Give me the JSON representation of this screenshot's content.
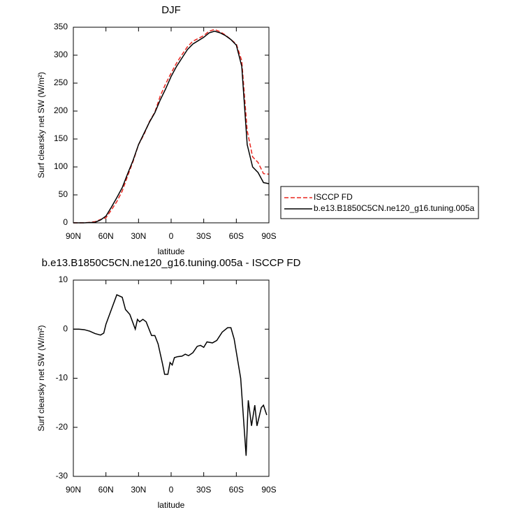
{
  "chart_data": [
    {
      "type": "line",
      "title": "DJF",
      "x_label": "latitude",
      "y_label": "Surf clearsky net SW (W/m²)",
      "xlim": [
        90,
        -90
      ],
      "xticks": [
        {
          "value": 90,
          "label": "90N"
        },
        {
          "value": 60,
          "label": "60N"
        },
        {
          "value": 30,
          "label": "30N"
        },
        0,
        {
          "value": -30,
          "label": "30S"
        },
        {
          "value": -60,
          "label": "60S"
        },
        {
          "value": -90,
          "label": "90S"
        }
      ],
      "ylim": [
        0,
        350
      ],
      "yticks": [
        0,
        50,
        100,
        150,
        200,
        250,
        300,
        350
      ],
      "legend": "outside right",
      "x": [
        90,
        85,
        80,
        75,
        70,
        65,
        60,
        55,
        50,
        45,
        40,
        35,
        30,
        25,
        20,
        15,
        10,
        5,
        0,
        -5,
        -10,
        -15,
        -20,
        -25,
        -30,
        -35,
        -40,
        -45,
        -50,
        -55,
        -60,
        -65,
        -70,
        -75,
        -80,
        -85,
        -90
      ],
      "series": [
        {
          "name": "ISCCP FD",
          "color": "#e8261f",
          "dashed": true,
          "values": [
            0,
            0,
            0,
            0.8,
            2,
            6,
            9,
            23,
            38,
            57,
            84,
            110,
            140,
            158,
            181,
            198,
            227,
            249,
            268,
            286,
            301,
            315,
            325,
            330,
            335,
            343,
            346,
            342,
            336,
            328,
            320,
            290,
            165,
            118,
            108,
            88,
            87
          ]
        },
        {
          "name": "b.e13.B1850C5CN.ne120_g16.tuning.005a",
          "color": "#000000",
          "dashed": false,
          "values": [
            0,
            0,
            0,
            0.5,
            1,
            5,
            12,
            28,
            45,
            63,
            88,
            112,
            140,
            160,
            180,
            197,
            220,
            240,
            262,
            280,
            295,
            310,
            320,
            326,
            332,
            340,
            343,
            340,
            335,
            328,
            318,
            280,
            140,
            100,
            90,
            72,
            70
          ]
        }
      ]
    },
    {
      "type": "line",
      "title": "b.e13.B1850C5CN.ne120_g16.tuning.005a - ISCCP FD",
      "x_label": "latitude",
      "y_label": "Surf clearsky net SW (W/m²)",
      "xlim": [
        90,
        -90
      ],
      "xticks": [
        {
          "value": 90,
          "label": "90N"
        },
        {
          "value": 60,
          "label": "60N"
        },
        {
          "value": 30,
          "label": "30N"
        },
        0,
        {
          "value": -30,
          "label": "30S"
        },
        {
          "value": -60,
          "label": "60S"
        },
        {
          "value": -90,
          "label": "90S"
        }
      ],
      "ylim": [
        -30,
        10
      ],
      "yticks": [
        -30,
        -20,
        -10,
        0,
        10
      ],
      "x": [
        90,
        85,
        80,
        75,
        70,
        65,
        62,
        60,
        55,
        50,
        45,
        42,
        38,
        33,
        31,
        29,
        26,
        23,
        18,
        15,
        12,
        8,
        6,
        3,
        1,
        -1,
        -3,
        -6,
        -10,
        -13,
        -16,
        -20,
        -24,
        -27,
        -30,
        -33,
        -38,
        -42,
        -47,
        -52,
        -55,
        -58,
        -64,
        -69,
        -71,
        -74,
        -77,
        -79,
        -83,
        -85,
        -88
      ],
      "series": [
        {
          "color": "#000000",
          "dashed": false,
          "values": [
            0,
            0,
            -0.1,
            -0.4,
            -0.9,
            -1.2,
            -0.8,
            1,
            4,
            7,
            6.5,
            4,
            3,
            0,
            2,
            1.5,
            2,
            1.5,
            -1.3,
            -1.3,
            -3,
            -7,
            -9.2,
            -9.2,
            -6.8,
            -7.3,
            -5.8,
            -5.6,
            -5.5,
            -5.1,
            -5.4,
            -4.8,
            -3.5,
            -3.3,
            -3.7,
            -2.6,
            -2.8,
            -2.3,
            -0.6,
            0.3,
            0.3,
            -2,
            -10,
            -25.8,
            -14.5,
            -19.7,
            -15.5,
            -19.7,
            -16,
            -15.5,
            -17.5
          ]
        }
      ]
    }
  ]
}
